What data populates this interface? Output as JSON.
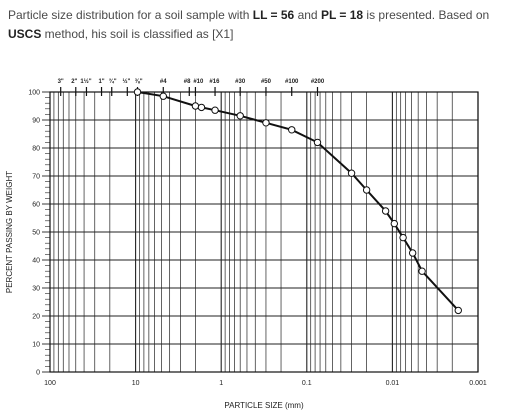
{
  "question": {
    "part1": "Particle size distribution for a soil sample with ",
    "ll": "LL = 56",
    "part2": " and ",
    "pl": "PL = 18",
    "part3": " is presented. Based on ",
    "uscs": "USCS",
    "part4": " method, his soil is classified as [X1]"
  },
  "chart_data": {
    "type": "line",
    "title": "",
    "xlabel": "PARTICLE SIZE (mm)",
    "ylabel": "PERCENT PASSING BY WEIGHT",
    "x_scale": "log",
    "x_reversed": true,
    "xlim": [
      100,
      0.001
    ],
    "ylim": [
      0,
      100
    ],
    "grid": true,
    "x_tick_labels": [
      {
        "value": 100,
        "label": "100"
      },
      {
        "value": 10,
        "label": "10"
      },
      {
        "value": 1,
        "label": "1"
      },
      {
        "value": 0.1,
        "label": "0.1"
      },
      {
        "value": 0.01,
        "label": "0.01"
      },
      {
        "value": 0.001,
        "label": "0.001"
      }
    ],
    "y_ticks": [
      0,
      10,
      20,
      30,
      40,
      50,
      60,
      70,
      80,
      90,
      100
    ],
    "sieves": [
      {
        "label": "3\"",
        "size": 75
      },
      {
        "label": "2\"",
        "size": 50
      },
      {
        "label": "1½\"",
        "size": 37.5
      },
      {
        "label": "1\"",
        "size": 25
      },
      {
        "label": "¾\"",
        "size": 19
      },
      {
        "label": "½\"",
        "size": 12.5
      },
      {
        "label": "⅜\"",
        "size": 9.5
      },
      {
        "label": "#4",
        "size": 4.75
      },
      {
        "label": "#8",
        "size": 2.36
      },
      {
        "label": "#10",
        "size": 2.0
      },
      {
        "label": "#16",
        "size": 1.18
      },
      {
        "label": "#30",
        "size": 0.6
      },
      {
        "label": "#50",
        "size": 0.3
      },
      {
        "label": "#100",
        "size": 0.15
      },
      {
        "label": "#200",
        "size": 0.075
      }
    ],
    "series": [
      {
        "points": [
          {
            "x": 9.5,
            "y": 100
          },
          {
            "x": 4.75,
            "y": 98.5
          },
          {
            "x": 2.0,
            "y": 95
          },
          {
            "x": 1.7,
            "y": 94.5
          },
          {
            "x": 1.18,
            "y": 93.5
          },
          {
            "x": 0.6,
            "y": 91.5
          },
          {
            "x": 0.3,
            "y": 89
          },
          {
            "x": 0.15,
            "y": 86.5
          },
          {
            "x": 0.075,
            "y": 82
          },
          {
            "x": 0.03,
            "y": 71
          },
          {
            "x": 0.02,
            "y": 65
          },
          {
            "x": 0.012,
            "y": 57.5
          },
          {
            "x": 0.0095,
            "y": 53
          },
          {
            "x": 0.0075,
            "y": 48
          },
          {
            "x": 0.0058,
            "y": 42.5
          },
          {
            "x": 0.0045,
            "y": 36
          },
          {
            "x": 0.0017,
            "y": 22
          }
        ]
      }
    ]
  }
}
